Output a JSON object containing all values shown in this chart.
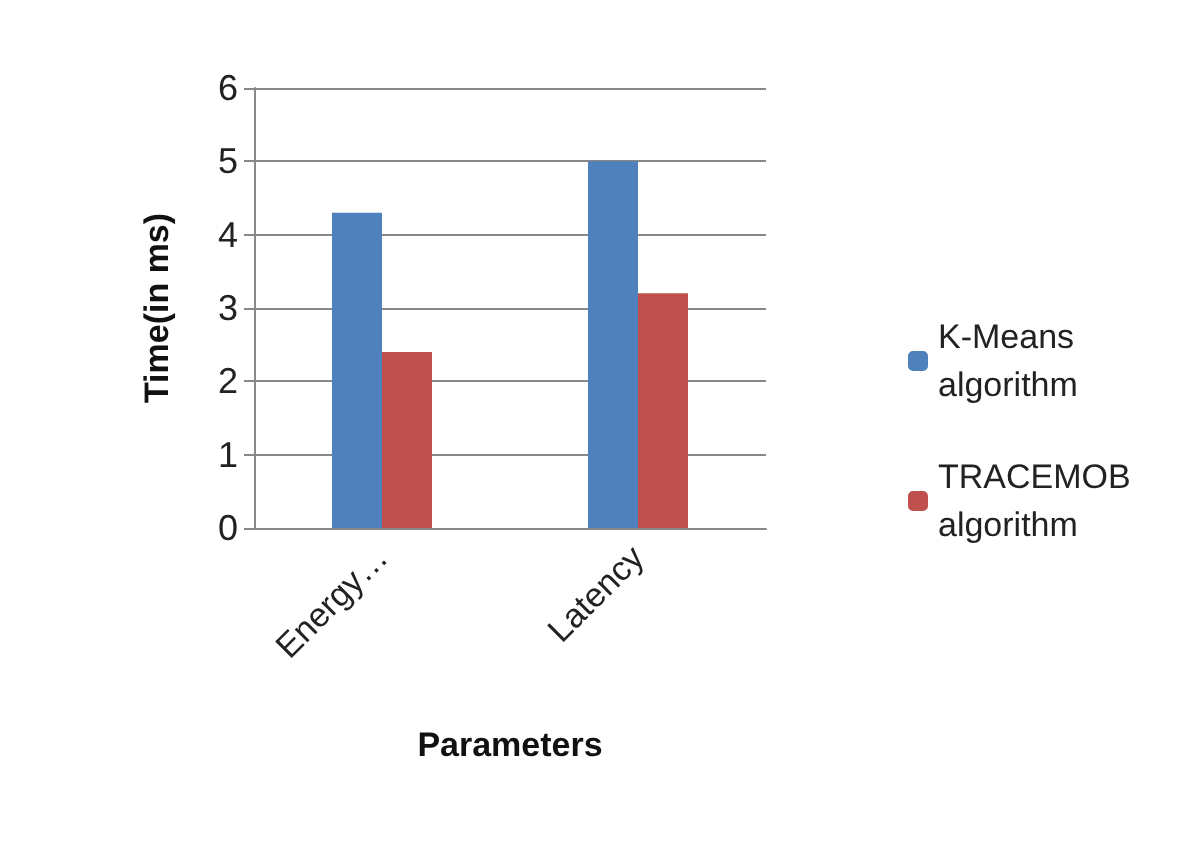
{
  "chart_data": {
    "type": "bar",
    "xlabel": "Parameters",
    "ylabel": "Time(in ms)",
    "categories": [
      "Energy…",
      "Latency"
    ],
    "series": [
      {
        "name": "K-Means algorithm",
        "color": "#4f81bd",
        "values": [
          4.3,
          5.0
        ]
      },
      {
        "name": "TRACEMOB algorithm",
        "color": "#c0504d",
        "values": [
          2.4,
          3.2
        ]
      }
    ],
    "ylim": [
      0,
      6
    ],
    "yticks": [
      0,
      1,
      2,
      3,
      4,
      5,
      6
    ],
    "grid": "y",
    "legend": "right"
  }
}
